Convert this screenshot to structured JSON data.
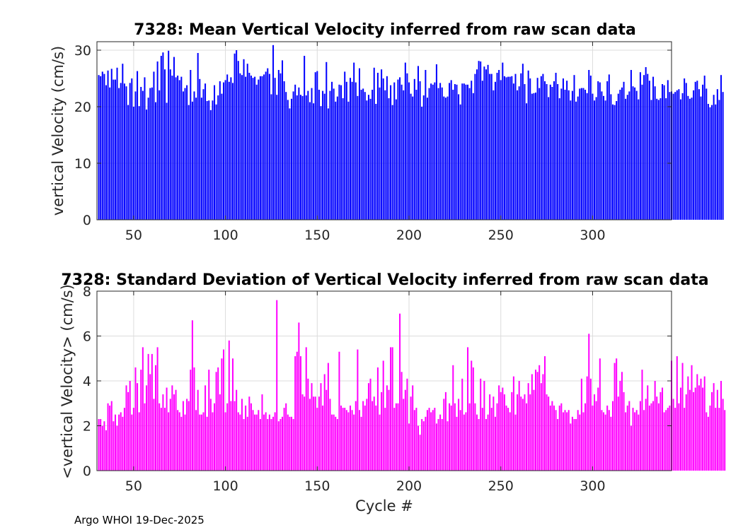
{
  "footer_text": "Argo WHOI 19-Dec-2025",
  "chart_data": [
    {
      "type": "bar",
      "title": "7328: Mean Vertical Velocity inferred from raw scan data",
      "xlabel": "",
      "ylabel": "vertical Velocity (cm/s)",
      "xlim": [
        30,
        343
      ],
      "ylim": [
        0,
        31.5
      ],
      "xticks": [
        50,
        100,
        150,
        200,
        250,
        300
      ],
      "yticks": [
        0,
        10,
        20,
        30
      ],
      "color": "#0000ff",
      "grid": true,
      "x_start": 31,
      "values": [
        25.6,
        25.4,
        26.2,
        25.8,
        23.8,
        26.4,
        23.4,
        26.7,
        24.8,
        24.8,
        26.9,
        23.3,
        24.2,
        27.6,
        24.1,
        23.6,
        20.3,
        24.2,
        25.0,
        20.0,
        22.7,
        26.3,
        20.1,
        23.5,
        22.8,
        25.2,
        19.5,
        21.6,
        23.3,
        23.4,
        26.2,
        20.8,
        28.0,
        22.9,
        29.0,
        29.6,
        26.6,
        20.7,
        29.9,
        26.6,
        25.5,
        28.8,
        25.2,
        25.5,
        24.7,
        25.3,
        22.7,
        23.3,
        23.8,
        20.3,
        26.5,
        20.9,
        22.7,
        21.6,
        29.5,
        24.9,
        21.6,
        23.1,
        24.1,
        21.0,
        21.1,
        19.4,
        21.1,
        23.8,
        20.4,
        22.0,
        24.5,
        22.3,
        24.3,
        24.7,
        25.7,
        24.4,
        25.2,
        24.2,
        29.4,
        30.0,
        28.1,
        25.9,
        25.6,
        28.4,
        25.3,
        27.6,
        26.0,
        25.5,
        25.1,
        25.3,
        23.9,
        24.8,
        25.4,
        25.4,
        25.7,
        26.2,
        26.8,
        25.8,
        22.2,
        30.9,
        25.1,
        22.1,
        26.5,
        25.9,
        28.2,
        24.5,
        22.6,
        21.2,
        19.7,
        21.4,
        22.7,
        23.9,
        22.0,
        23.4,
        22.1,
        21.9,
        29.0,
        22.0,
        22.8,
        20.8,
        23.3,
        20.6,
        26.1,
        26.3,
        23.0,
        20.1,
        22.8,
        22.3,
        27.9,
        19.7,
        22.8,
        24.4,
        23.2,
        20.9,
        21.8,
        23.9,
        23.8,
        21.5,
        26.2,
        24.4,
        20.9,
        25.1,
        24.4,
        27.8,
        24.3,
        21.9,
        26.8,
        23.0,
        23.2,
        22.6,
        21.1,
        22.1,
        21.4,
        23.0,
        26.9,
        20.5,
        26.0,
        23.4,
        26.6,
        25.0,
        22.9,
        25.4,
        21.5,
        23.8,
        20.3,
        24.3,
        21.3,
        24.8,
        25.2,
        23.9,
        22.9,
        27.8,
        25.9,
        24.3,
        22.3,
        21.8,
        24.9,
        23.0,
        27.2,
        24.5,
        20.0,
        22.0,
        26.5,
        21.6,
        23.3,
        24.1,
        23.9,
        24.3,
        27.5,
        23.3,
        24.2,
        23.4,
        21.8,
        21.6,
        21.8,
        24.2,
        24.7,
        23.0,
        24.0,
        23.9,
        22.2,
        20.4,
        24.1,
        24.1,
        23.9,
        23.9,
        23.3,
        24.6,
        22.4,
        25.8,
        26.6,
        28.1,
        28.0,
        24.6,
        27.1,
        26.6,
        27.4,
        25.8,
        25.8,
        22.9,
        24.4,
        26.0,
        26.5,
        24.7,
        27.8,
        25.4,
        25.2,
        25.3,
        25.3,
        25.4,
        24.1,
        25.8,
        22.9,
        23.6,
        25.9,
        27.6,
        24.0,
        20.6,
        26.4,
        25.0,
        22.3,
        22.4,
        22.5,
        25.1,
        23.3,
        25.4,
        25.8,
        24.5,
        24.0,
        21.7,
        23.9,
        23.5,
        24.5,
        26.0,
        24.0,
        21.5,
        23.2,
        25.0,
        23.0,
        24.6,
        22.9,
        21.1,
        22.8,
        25.6,
        20.9,
        21.8,
        23.2,
        23.3,
        23.3,
        23.0,
        22.4,
        26.5,
        25.5,
        22.3,
        21.1,
        21.7,
        24.5,
        24.3,
        22.7,
        21.9,
        21.1,
        24.5,
        25.7,
        22.2,
        20.4,
        20.3,
        21.0,
        22.3,
        23.0,
        23.4,
        24.4,
        21.4,
        22.1,
        22.7,
        26.5,
        23.6,
        23.4,
        22.8,
        21.3,
        26.1,
        23.9,
        25.6,
        27.0,
        25.8,
        24.6,
        21.2,
        25.3,
        23.6,
        21.4,
        21.2,
        21.5,
        24.0,
        23.8,
        21.5,
        24.7,
        22.6,
        22.7,
        22.3,
        22.6,
        22.9,
        23.1,
        21.3,
        22.4,
        25.0,
        24.2,
        21.9,
        21.4,
        21.6,
        22.9,
        24.4,
        24.6,
        23.1,
        21.8,
        23.9,
        25.5,
        23.2,
        20.5,
        19.9,
        20.3,
        22.1,
        20.4,
        23.1,
        21.2,
        25.6,
        22.6
      ]
    },
    {
      "type": "bar",
      "title": "7328: Standard Deviation of Vertical Velocity inferred from raw scan data",
      "xlabel": "Cycle #",
      "ylabel": "<vertical Velocity> (cm/s)",
      "xlim": [
        30,
        343
      ],
      "ylim": [
        0,
        8
      ],
      "xticks": [
        50,
        100,
        150,
        200,
        250,
        300
      ],
      "yticks": [
        0,
        2,
        4,
        6,
        8
      ],
      "color": "#ff00ff",
      "grid": true,
      "x_start": 31,
      "values": [
        2.3,
        2.3,
        2.0,
        2.2,
        1.8,
        3.0,
        2.9,
        3.1,
        2.2,
        2.5,
        2.0,
        2.5,
        2.6,
        2.4,
        2.8,
        3.8,
        3.5,
        4.0,
        2.5,
        2.8,
        4.6,
        3.9,
        2.6,
        4.5,
        5.5,
        3.0,
        3.8,
        5.2,
        4.3,
        5.2,
        3.2,
        4.7,
        5.5,
        3.0,
        2.8,
        3.4,
        2.8,
        3.7,
        2.6,
        3.2,
        3.8,
        3.4,
        3.6,
        2.7,
        2.6,
        2.4,
        3.1,
        2.5,
        3.2,
        3.1,
        4.5,
        6.7,
        4.6,
        2.7,
        3.6,
        2.5,
        2.5,
        2.6,
        3.8,
        2.4,
        4.5,
        3.2,
        2.6,
        3.0,
        4.4,
        4.6,
        3.4,
        5.0,
        5.4,
        2.6,
        3.0,
        5.8,
        3.1,
        5.0,
        3.1,
        3.6,
        2.6,
        2.5,
        3.2,
        2.3,
        2.9,
        2.4,
        3.3,
        3.0,
        2.7,
        2.5,
        2.5,
        2.7,
        2.3,
        3.4,
        2.5,
        2.6,
        2.3,
        2.5,
        2.3,
        2.4,
        2.6,
        7.6,
        2.2,
        2.3,
        2.4,
        2.8,
        3.0,
        2.5,
        2.4,
        2.4,
        2.3,
        5.1,
        5.3,
        6.6,
        5.1,
        3.4,
        3.3,
        5.5,
        4.1,
        3.2,
        3.9,
        3.3,
        3.3,
        2.8,
        3.3,
        3.9,
        2.9,
        4.3,
        3.6,
        4.8,
        3.2,
        2.5,
        2.5,
        2.4,
        2.3,
        5.3,
        2.9,
        2.8,
        2.8,
        2.7,
        2.6,
        2.9,
        2.7,
        2.5,
        3.1,
        5.4,
        2.7,
        2.4,
        3.1,
        2.9,
        3.2,
        3.9,
        4.1,
        3.1,
        3.3,
        2.9,
        4.6,
        2.5,
        3.5,
        4.9,
        2.8,
        3.8,
        3.6,
        5.5,
        5.5,
        2.8,
        3.0,
        3.0,
        7.0,
        4.4,
        3.2,
        3.6,
        4.1,
        2.1,
        3.3,
        3.8,
        2.7,
        2.8,
        2.0,
        1.6,
        2.3,
        2.2,
        2.4,
        2.7,
        2.8,
        2.6,
        2.7,
        2.8,
        2.1,
        2.3,
        2.5,
        2.3,
        3.2,
        3.5,
        2.2,
        3.0,
        2.9,
        4.7,
        3.0,
        2.4,
        3.2,
        2.7,
        4.1,
        2.5,
        2.6,
        5.5,
        3.0,
        4.9,
        4.6,
        3.0,
        2.5,
        2.3,
        4.1,
        2.8,
        4.0,
        2.3,
        2.5,
        3.4,
        2.8,
        3.3,
        2.4,
        3.0,
        3.8,
        3.5,
        3.7,
        3.4,
        2.9,
        2.8,
        2.6,
        3.5,
        4.2,
        2.5,
        3.4,
        4.0,
        3.3,
        3.2,
        3.4,
        3.0,
        3.9,
        3.4,
        4.3,
        3.6,
        4.5,
        4.4,
        4.7,
        3.9,
        4.3,
        5.1,
        3.4,
        3.3,
        2.9,
        3.1,
        2.9,
        2.7,
        2.3,
        2.9,
        3.0,
        2.6,
        2.7,
        2.6,
        2.7,
        2.1,
        2.4,
        2.3,
        2.3,
        2.7,
        2.5,
        4.1,
        2.6,
        3.0,
        4.2,
        6.1,
        4.1,
        2.9,
        3.4,
        3.1,
        3.7,
        5.0,
        2.7,
        2.6,
        2.5,
        2.9,
        2.7,
        2.4,
        3.1,
        4.8,
        5.0,
        3.3,
        4.0,
        4.4,
        3.5,
        2.6,
        2.9,
        3.1,
        2.0,
        2.8,
        2.6,
        2.7,
        2.5,
        3.1,
        4.5,
        2.7,
        3.2,
        3.8,
        2.9,
        3.0,
        3.1,
        4.0,
        3.3,
        3.0,
        3.5,
        3.7,
        2.6,
        2.7,
        2.8,
        2.9,
        4.9,
        3.2,
        2.8,
        5.1,
        3.0,
        3.7,
        4.8,
        2.8,
        3.4,
        4.2,
        3.6,
        4.7,
        3.5,
        3.7,
        4.3,
        3.8,
        4.1,
        3.7,
        4.2,
        2.6,
        2.4,
        2.9,
        3.5,
        3.9,
        2.8,
        3.6,
        2.8,
        4.0,
        3.2,
        2.7
      ]
    }
  ]
}
